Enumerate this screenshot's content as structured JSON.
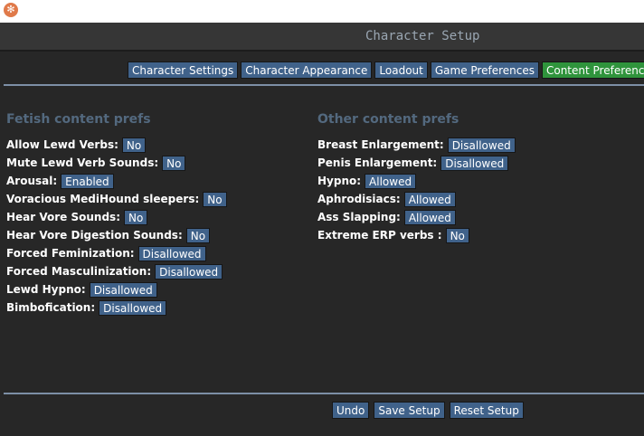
{
  "window": {
    "icon": "app-logo-icon"
  },
  "header": {
    "title": "Character Setup"
  },
  "tabs": [
    {
      "label": "Character Settings",
      "active": false
    },
    {
      "label": "Character Appearance",
      "active": false
    },
    {
      "label": "Loadout",
      "active": false
    },
    {
      "label": "Game Preferences",
      "active": false
    },
    {
      "label": "Content Preferences",
      "active": true
    }
  ],
  "fetish": {
    "title": "Fetish content prefs",
    "items": [
      {
        "label": "Allow Lewd Verbs:",
        "value": "No"
      },
      {
        "label": "Mute Lewd Verb Sounds:",
        "value": "No"
      },
      {
        "label": "Arousal:",
        "value": "Enabled"
      },
      {
        "label": "Voracious MediHound sleepers:",
        "value": "No"
      },
      {
        "label": "Hear Vore Sounds:",
        "value": "No"
      },
      {
        "label": "Hear Vore Digestion Sounds:",
        "value": "No"
      },
      {
        "label": "Forced Feminization:",
        "value": "Disallowed"
      },
      {
        "label": "Forced Masculinization:",
        "value": "Disallowed"
      },
      {
        "label": "Lewd Hypno:",
        "value": "Disallowed"
      },
      {
        "label": "Bimbofication:",
        "value": "Disallowed"
      }
    ]
  },
  "other": {
    "title": "Other content prefs",
    "items": [
      {
        "label": "Breast Enlargement:",
        "value": "Disallowed"
      },
      {
        "label": "Penis Enlargement:",
        "value": "Disallowed"
      },
      {
        "label": "Hypno:",
        "value": "Allowed"
      },
      {
        "label": "Aphrodisiacs:",
        "value": "Allowed"
      },
      {
        "label": "Ass Slapping:",
        "value": "Allowed"
      },
      {
        "label": "Extreme ERP verbs :",
        "value": "No"
      }
    ]
  },
  "footer": {
    "undo": "Undo",
    "save": "Save Setup",
    "reset": "Reset Setup"
  },
  "colors": {
    "button": "#40628a",
    "active_tab": "#2f943c",
    "section_title": "#53697f"
  }
}
